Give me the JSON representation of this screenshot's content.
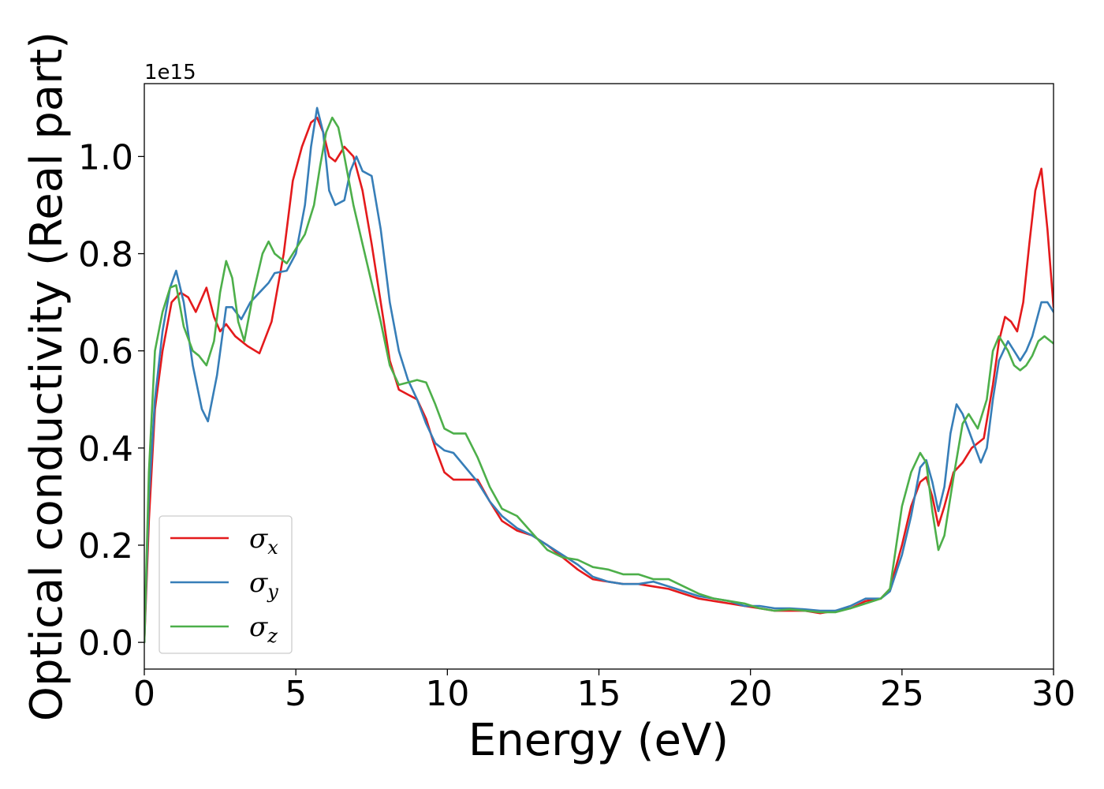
{
  "chart_data": {
    "type": "line",
    "xlabel": "Energy (eV)",
    "ylabel": "Optical conductivity (Real part)",
    "y_scale_label": "1e15",
    "xlim": [
      0,
      30
    ],
    "ylim": [
      -0.055,
      1.15
    ],
    "x_ticks": [
      0,
      5,
      10,
      15,
      20,
      25,
      30
    ],
    "x_tick_labels": [
      "0",
      "5",
      "10",
      "15",
      "20",
      "25",
      "30"
    ],
    "y_ticks": [
      0.0,
      0.2,
      0.4,
      0.6,
      0.8,
      1.0
    ],
    "y_tick_labels": [
      "0.0",
      "0.2",
      "0.4",
      "0.6",
      "0.8",
      "1.0"
    ],
    "grid": false,
    "legend_position": "bottom-left",
    "series": [
      {
        "name": "σx",
        "symbol": "σ",
        "subscript": "x",
        "color": "#e41a1c",
        "points": [
          [
            0,
            0
          ],
          [
            0.15,
            0.25
          ],
          [
            0.35,
            0.48
          ],
          [
            0.6,
            0.6
          ],
          [
            0.9,
            0.7
          ],
          [
            1.2,
            0.72
          ],
          [
            1.45,
            0.71
          ],
          [
            1.7,
            0.68
          ],
          [
            2.05,
            0.73
          ],
          [
            2.3,
            0.67
          ],
          [
            2.5,
            0.64
          ],
          [
            2.7,
            0.655
          ],
          [
            3.0,
            0.63
          ],
          [
            3.4,
            0.61
          ],
          [
            3.8,
            0.595
          ],
          [
            4.2,
            0.66
          ],
          [
            4.6,
            0.8
          ],
          [
            4.9,
            0.95
          ],
          [
            5.2,
            1.02
          ],
          [
            5.5,
            1.07
          ],
          [
            5.7,
            1.08
          ],
          [
            5.9,
            1.05
          ],
          [
            6.1,
            1.0
          ],
          [
            6.3,
            0.99
          ],
          [
            6.6,
            1.02
          ],
          [
            6.9,
            1.0
          ],
          [
            7.2,
            0.93
          ],
          [
            7.5,
            0.82
          ],
          [
            7.8,
            0.7
          ],
          [
            8.1,
            0.58
          ],
          [
            8.4,
            0.52
          ],
          [
            8.7,
            0.51
          ],
          [
            9.0,
            0.5
          ],
          [
            9.3,
            0.46
          ],
          [
            9.6,
            0.4
          ],
          [
            9.9,
            0.35
          ],
          [
            10.2,
            0.335
          ],
          [
            10.6,
            0.335
          ],
          [
            11.0,
            0.335
          ],
          [
            11.4,
            0.29
          ],
          [
            11.8,
            0.25
          ],
          [
            12.3,
            0.23
          ],
          [
            12.8,
            0.22
          ],
          [
            13.3,
            0.2
          ],
          [
            13.8,
            0.175
          ],
          [
            14.3,
            0.15
          ],
          [
            14.8,
            0.13
          ],
          [
            15.3,
            0.125
          ],
          [
            15.8,
            0.12
          ],
          [
            16.3,
            0.12
          ],
          [
            16.8,
            0.115
          ],
          [
            17.3,
            0.11
          ],
          [
            17.8,
            0.1
          ],
          [
            18.3,
            0.09
          ],
          [
            18.8,
            0.085
          ],
          [
            19.3,
            0.08
          ],
          [
            19.8,
            0.075
          ],
          [
            20.3,
            0.07
          ],
          [
            20.8,
            0.065
          ],
          [
            21.3,
            0.065
          ],
          [
            21.8,
            0.065
          ],
          [
            22.3,
            0.06
          ],
          [
            22.8,
            0.065
          ],
          [
            23.3,
            0.07
          ],
          [
            23.8,
            0.085
          ],
          [
            24.3,
            0.09
          ],
          [
            24.6,
            0.11
          ],
          [
            25.0,
            0.2
          ],
          [
            25.3,
            0.28
          ],
          [
            25.6,
            0.33
          ],
          [
            25.8,
            0.34
          ],
          [
            26.0,
            0.3
          ],
          [
            26.2,
            0.24
          ],
          [
            26.4,
            0.28
          ],
          [
            26.7,
            0.35
          ],
          [
            27.0,
            0.37
          ],
          [
            27.3,
            0.4
          ],
          [
            27.7,
            0.42
          ],
          [
            28.0,
            0.53
          ],
          [
            28.2,
            0.62
          ],
          [
            28.4,
            0.67
          ],
          [
            28.6,
            0.66
          ],
          [
            28.8,
            0.64
          ],
          [
            29.0,
            0.7
          ],
          [
            29.2,
            0.82
          ],
          [
            29.4,
            0.93
          ],
          [
            29.6,
            0.975
          ],
          [
            29.8,
            0.85
          ],
          [
            30.0,
            0.69
          ]
        ]
      },
      {
        "name": "σy",
        "symbol": "σ",
        "subscript": "y",
        "color": "#377eb8",
        "points": [
          [
            0,
            0
          ],
          [
            0.15,
            0.3
          ],
          [
            0.35,
            0.5
          ],
          [
            0.6,
            0.64
          ],
          [
            0.85,
            0.73
          ],
          [
            1.05,
            0.765
          ],
          [
            1.3,
            0.7
          ],
          [
            1.6,
            0.57
          ],
          [
            1.9,
            0.48
          ],
          [
            2.1,
            0.455
          ],
          [
            2.4,
            0.55
          ],
          [
            2.7,
            0.69
          ],
          [
            2.9,
            0.69
          ],
          [
            3.2,
            0.665
          ],
          [
            3.5,
            0.7
          ],
          [
            3.8,
            0.72
          ],
          [
            4.1,
            0.74
          ],
          [
            4.3,
            0.76
          ],
          [
            4.7,
            0.765
          ],
          [
            5.0,
            0.8
          ],
          [
            5.3,
            0.9
          ],
          [
            5.5,
            1.02
          ],
          [
            5.7,
            1.1
          ],
          [
            5.9,
            1.05
          ],
          [
            6.1,
            0.93
          ],
          [
            6.3,
            0.9
          ],
          [
            6.6,
            0.91
          ],
          [
            6.8,
            0.97
          ],
          [
            7.0,
            1.0
          ],
          [
            7.2,
            0.97
          ],
          [
            7.5,
            0.96
          ],
          [
            7.8,
            0.85
          ],
          [
            8.1,
            0.7
          ],
          [
            8.4,
            0.6
          ],
          [
            8.7,
            0.54
          ],
          [
            9.0,
            0.5
          ],
          [
            9.3,
            0.45
          ],
          [
            9.6,
            0.41
          ],
          [
            9.9,
            0.395
          ],
          [
            10.2,
            0.39
          ],
          [
            10.6,
            0.36
          ],
          [
            11.0,
            0.33
          ],
          [
            11.4,
            0.29
          ],
          [
            11.8,
            0.26
          ],
          [
            12.3,
            0.235
          ],
          [
            12.8,
            0.22
          ],
          [
            13.3,
            0.2
          ],
          [
            13.8,
            0.18
          ],
          [
            14.3,
            0.16
          ],
          [
            14.8,
            0.135
          ],
          [
            15.3,
            0.125
          ],
          [
            15.8,
            0.12
          ],
          [
            16.3,
            0.12
          ],
          [
            16.8,
            0.125
          ],
          [
            17.3,
            0.115
          ],
          [
            17.8,
            0.105
          ],
          [
            18.3,
            0.095
          ],
          [
            18.8,
            0.09
          ],
          [
            19.3,
            0.085
          ],
          [
            19.8,
            0.075
          ],
          [
            20.3,
            0.075
          ],
          [
            20.8,
            0.07
          ],
          [
            21.3,
            0.07
          ],
          [
            21.8,
            0.068
          ],
          [
            22.3,
            0.065
          ],
          [
            22.8,
            0.065
          ],
          [
            23.3,
            0.075
          ],
          [
            23.8,
            0.09
          ],
          [
            24.3,
            0.09
          ],
          [
            24.6,
            0.105
          ],
          [
            25.0,
            0.18
          ],
          [
            25.3,
            0.26
          ],
          [
            25.6,
            0.36
          ],
          [
            25.8,
            0.375
          ],
          [
            26.0,
            0.33
          ],
          [
            26.2,
            0.27
          ],
          [
            26.4,
            0.32
          ],
          [
            26.6,
            0.43
          ],
          [
            26.8,
            0.49
          ],
          [
            27.0,
            0.47
          ],
          [
            27.3,
            0.42
          ],
          [
            27.6,
            0.37
          ],
          [
            27.8,
            0.4
          ],
          [
            28.0,
            0.5
          ],
          [
            28.2,
            0.58
          ],
          [
            28.5,
            0.62
          ],
          [
            28.7,
            0.6
          ],
          [
            28.9,
            0.58
          ],
          [
            29.1,
            0.6
          ],
          [
            29.3,
            0.63
          ],
          [
            29.6,
            0.7
          ],
          [
            29.8,
            0.7
          ],
          [
            30.0,
            0.68
          ]
        ]
      },
      {
        "name": "σz",
        "symbol": "σ",
        "subscript": "z",
        "color": "#4daf4a",
        "points": [
          [
            0,
            0
          ],
          [
            0.15,
            0.35
          ],
          [
            0.35,
            0.6
          ],
          [
            0.6,
            0.68
          ],
          [
            0.85,
            0.73
          ],
          [
            1.05,
            0.735
          ],
          [
            1.3,
            0.65
          ],
          [
            1.6,
            0.6
          ],
          [
            1.8,
            0.59
          ],
          [
            2.05,
            0.57
          ],
          [
            2.3,
            0.62
          ],
          [
            2.5,
            0.72
          ],
          [
            2.7,
            0.785
          ],
          [
            2.9,
            0.75
          ],
          [
            3.1,
            0.66
          ],
          [
            3.3,
            0.62
          ],
          [
            3.6,
            0.72
          ],
          [
            3.9,
            0.8
          ],
          [
            4.1,
            0.825
          ],
          [
            4.3,
            0.8
          ],
          [
            4.7,
            0.78
          ],
          [
            5.0,
            0.81
          ],
          [
            5.3,
            0.84
          ],
          [
            5.6,
            0.9
          ],
          [
            5.8,
            0.98
          ],
          [
            6.0,
            1.05
          ],
          [
            6.2,
            1.08
          ],
          [
            6.4,
            1.06
          ],
          [
            6.6,
            1.0
          ],
          [
            6.9,
            0.9
          ],
          [
            7.2,
            0.82
          ],
          [
            7.5,
            0.74
          ],
          [
            7.8,
            0.66
          ],
          [
            8.1,
            0.57
          ],
          [
            8.4,
            0.53
          ],
          [
            8.7,
            0.535
          ],
          [
            9.0,
            0.54
          ],
          [
            9.3,
            0.535
          ],
          [
            9.6,
            0.49
          ],
          [
            9.9,
            0.44
          ],
          [
            10.2,
            0.43
          ],
          [
            10.6,
            0.43
          ],
          [
            11.0,
            0.38
          ],
          [
            11.4,
            0.32
          ],
          [
            11.8,
            0.275
          ],
          [
            12.3,
            0.26
          ],
          [
            12.8,
            0.225
          ],
          [
            13.3,
            0.19
          ],
          [
            13.8,
            0.175
          ],
          [
            14.3,
            0.17
          ],
          [
            14.8,
            0.155
          ],
          [
            15.3,
            0.15
          ],
          [
            15.8,
            0.14
          ],
          [
            16.3,
            0.14
          ],
          [
            16.8,
            0.13
          ],
          [
            17.3,
            0.13
          ],
          [
            17.8,
            0.115
          ],
          [
            18.3,
            0.1
          ],
          [
            18.8,
            0.09
          ],
          [
            19.3,
            0.085
          ],
          [
            19.8,
            0.08
          ],
          [
            20.3,
            0.07
          ],
          [
            20.8,
            0.065
          ],
          [
            21.3,
            0.068
          ],
          [
            21.8,
            0.065
          ],
          [
            22.3,
            0.062
          ],
          [
            22.8,
            0.062
          ],
          [
            23.3,
            0.07
          ],
          [
            23.8,
            0.08
          ],
          [
            24.3,
            0.09
          ],
          [
            24.6,
            0.11
          ],
          [
            25.0,
            0.28
          ],
          [
            25.3,
            0.35
          ],
          [
            25.6,
            0.39
          ],
          [
            25.8,
            0.37
          ],
          [
            26.0,
            0.27
          ],
          [
            26.2,
            0.19
          ],
          [
            26.4,
            0.22
          ],
          [
            26.7,
            0.34
          ],
          [
            27.0,
            0.45
          ],
          [
            27.2,
            0.47
          ],
          [
            27.5,
            0.44
          ],
          [
            27.8,
            0.5
          ],
          [
            28.0,
            0.6
          ],
          [
            28.2,
            0.63
          ],
          [
            28.5,
            0.6
          ],
          [
            28.7,
            0.57
          ],
          [
            28.9,
            0.56
          ],
          [
            29.1,
            0.57
          ],
          [
            29.3,
            0.59
          ],
          [
            29.5,
            0.62
          ],
          [
            29.7,
            0.63
          ],
          [
            30.0,
            0.615
          ]
        ]
      }
    ]
  }
}
